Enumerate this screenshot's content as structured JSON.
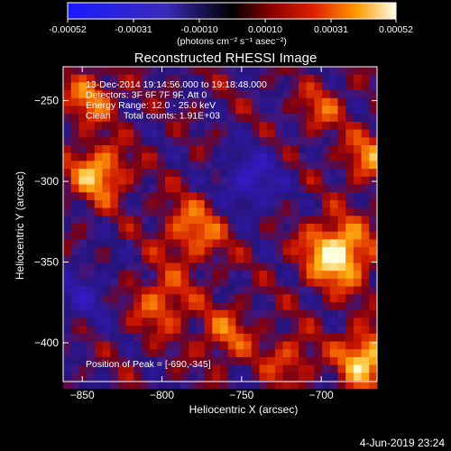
{
  "colorbar": {
    "tick_labels": [
      "-0.00052",
      "-0.00031",
      "-0.00010",
      "0.00010",
      "0.00031",
      "0.00052"
    ],
    "unit_label": "(photons cm⁻² s⁻¹ asec⁻²)",
    "range": [
      -0.00052,
      0.00052
    ]
  },
  "chart_data": {
    "type": "heatmap",
    "title": "Reconstructed RHESSI Image",
    "xlabel": "Heliocentric X (arcsec)",
    "ylabel": "Heliocentric Y (arcsec)",
    "xlim": [
      -862,
      -665
    ],
    "ylim": [
      -424,
      -229
    ],
    "x_ticks": [
      -850,
      -800,
      -750,
      -700
    ],
    "y_ticks": [
      -400,
      -350,
      -300,
      -250
    ],
    "x_tick_labels": [
      "−850",
      "−800",
      "−750",
      "−700"
    ],
    "y_tick_labels": [
      "−400",
      "−350",
      "−300",
      "−250"
    ],
    "grid": false,
    "annotations": [
      "13-Dec-2014 19:14:56.000 to 19:18:48.000",
      "Detectors: 3F 6F 7F 9F, Att 0",
      "Energy Range: 12.0 - 25.0 keV",
      "Clean     Total counts: 1.91E+03"
    ],
    "peak_label": "Position of Peak = [-690,-345]",
    "peak": [
      -690,
      -345
    ],
    "sources": [
      {
        "x": -690,
        "y": -345,
        "amp": 1.0,
        "sigma": 14
      },
      {
        "x": -672,
        "y": -410,
        "amp": 0.85,
        "sigma": 12
      },
      {
        "x": -840,
        "y": -295,
        "amp": 0.75,
        "sigma": 12
      },
      {
        "x": -845,
        "y": -248,
        "amp": 0.55,
        "sigma": 11
      },
      {
        "x": -780,
        "y": -330,
        "amp": 0.55,
        "sigma": 14
      },
      {
        "x": -800,
        "y": -375,
        "amp": 0.5,
        "sigma": 13
      },
      {
        "x": -760,
        "y": -395,
        "amp": 0.45,
        "sigma": 12
      },
      {
        "x": -670,
        "y": -285,
        "amp": 0.55,
        "sigma": 11
      },
      {
        "x": -720,
        "y": -410,
        "amp": 0.4,
        "sigma": 11
      },
      {
        "x": -700,
        "y": -255,
        "amp": 0.4,
        "sigma": 10
      },
      {
        "x": -745,
        "y": -300,
        "amp": -0.55,
        "sigma": 14
      },
      {
        "x": -850,
        "y": -370,
        "amp": -0.35,
        "sigma": 14
      }
    ]
  },
  "footer": {
    "date": "4-Jun-2019 23:24"
  }
}
